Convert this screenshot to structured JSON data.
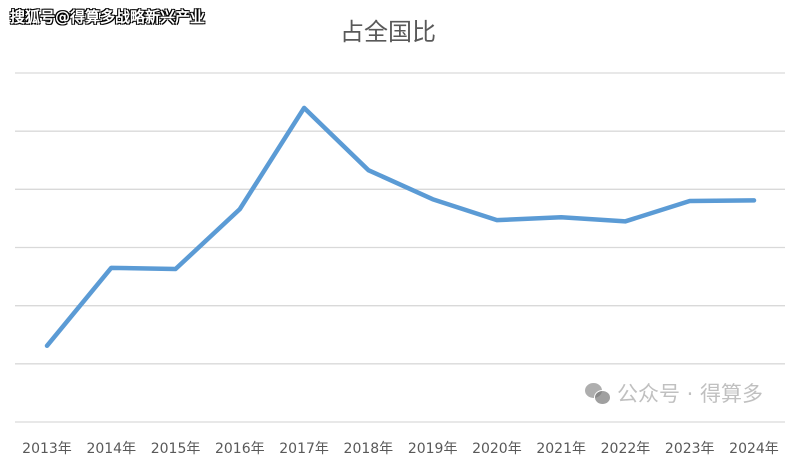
{
  "watermark_top": "搜狐号@得算多战略新兴产业",
  "watermark_bottom": "公众号 · 得算多",
  "chart_data": {
    "type": "line",
    "title": "占全国比",
    "xlabel": "",
    "ylabel": "",
    "categories": [
      "2013年",
      "2014年",
      "2015年",
      "2016年",
      "2017年",
      "2018年",
      "2019年",
      "2020年",
      "2021年",
      "2022年",
      "2023年",
      "2024年"
    ],
    "values": [
      1.31,
      2.65,
      2.63,
      3.66,
      5.4,
      4.33,
      3.83,
      3.47,
      3.52,
      3.45,
      3.8,
      3.81
    ],
    "ylim": [
      0,
      6
    ],
    "y_tick_labels_shown": false,
    "grid": true,
    "legend": "none",
    "line_color": "#5b9bd5"
  }
}
